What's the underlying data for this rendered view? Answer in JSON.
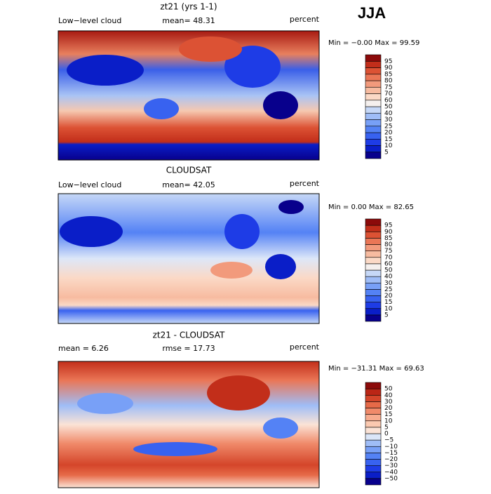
{
  "header": {
    "season": "JJA"
  },
  "panels": [
    {
      "title": "zt21 (yrs 1-1)",
      "left": "Low−level cloud",
      "center": "mean=  48.31",
      "units": "percent",
      "minmax": "Min =  −0.00 Max =  99.59",
      "colorbar": {
        "labels": [
          "5",
          "10",
          "15",
          "20",
          "25",
          "30",
          "40",
          "50",
          "60",
          "70",
          "75",
          "80",
          "85",
          "90",
          "95"
        ],
        "colors": [
          "#08008c",
          "#0a1ec8",
          "#1e3ce6",
          "#3862f0",
          "#5482f5",
          "#78a0f7",
          "#9fbdf7",
          "#c6d8f7",
          "#f5f0ee",
          "#fbd9c6",
          "#f7bba0",
          "#f29a7c",
          "#ea7656",
          "#dc5234",
          "#c22e1a",
          "#8c0a0a"
        ]
      }
    },
    {
      "title": "CLOUDSAT",
      "left": "Low−level cloud",
      "center": "mean=  42.05",
      "units": "percent",
      "minmax": "Min =   0.00 Max =  82.65",
      "colorbar": {
        "labels": [
          "5",
          "10",
          "15",
          "20",
          "25",
          "30",
          "40",
          "50",
          "60",
          "70",
          "75",
          "80",
          "85",
          "90",
          "95"
        ],
        "colors": [
          "#08008c",
          "#0a1ec8",
          "#1e3ce6",
          "#3862f0",
          "#5482f5",
          "#78a0f7",
          "#9fbdf7",
          "#c6d8f7",
          "#f5f0ee",
          "#fbd9c6",
          "#f7bba0",
          "#f29a7c",
          "#ea7656",
          "#dc5234",
          "#c22e1a",
          "#8c0a0a"
        ]
      }
    },
    {
      "title": "zt21 - CLOUDSAT",
      "left": "mean =   6.26",
      "center": "rmse =  17.73",
      "units": "percent",
      "minmax": "Min = −31.31 Max =  69.63",
      "colorbar": {
        "labels": [
          "−50",
          "−40",
          "−30",
          "−20",
          "−15",
          "−10",
          "−5",
          "0",
          "5",
          "10",
          "15",
          "20",
          "30",
          "40",
          "50"
        ],
        "colors": [
          "#08008c",
          "#0a1ec8",
          "#1e3ce6",
          "#3862f0",
          "#5482f5",
          "#78a0f7",
          "#9fbdf7",
          "#dbe6f8",
          "#fbe3d6",
          "#fbc9b0",
          "#f7ab8e",
          "#f08a6a",
          "#e66a48",
          "#d4452a",
          "#bb2616",
          "#8c0a0a"
        ]
      }
    }
  ]
}
